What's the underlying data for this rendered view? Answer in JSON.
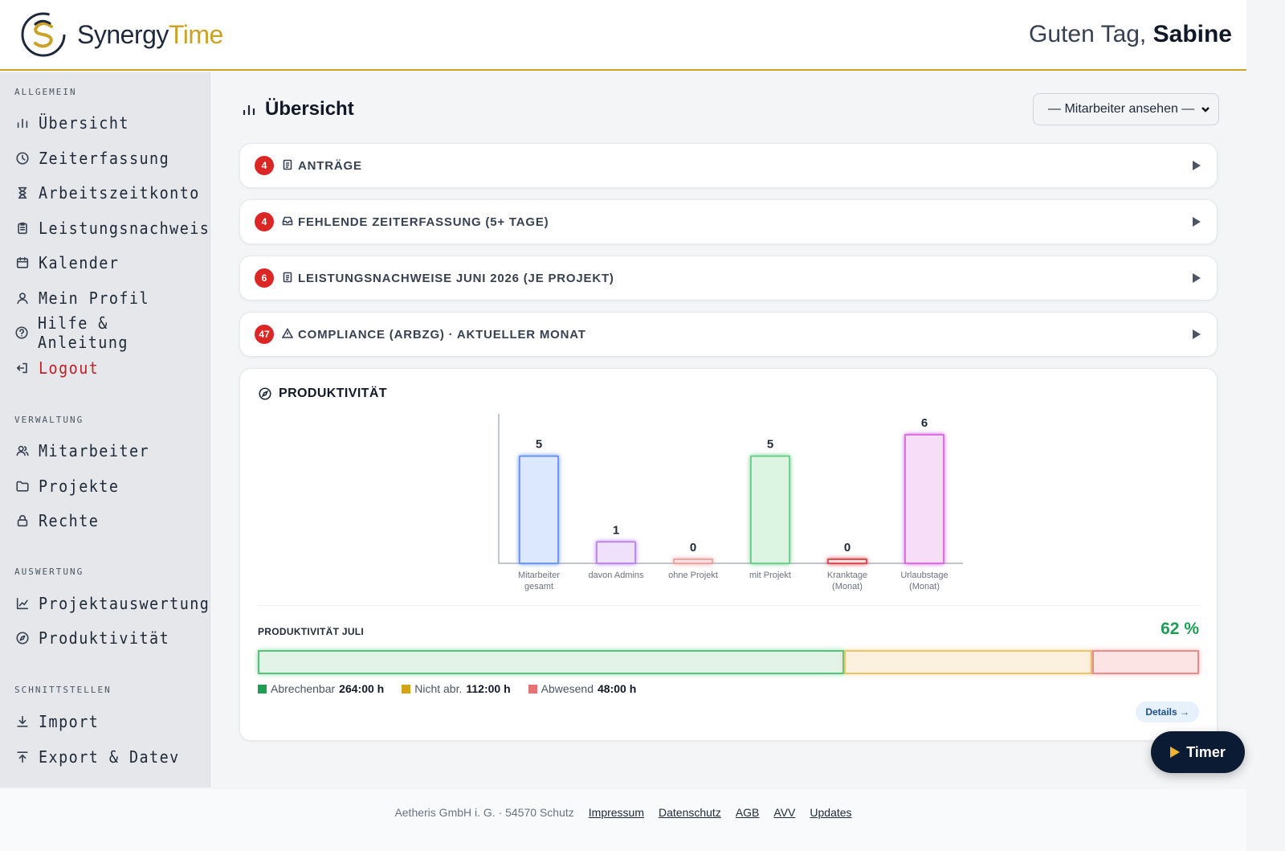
{
  "header": {
    "brand_a": "Synergy",
    "brand_b": "Time",
    "greeting": "Guten Tag,",
    "user_name": "Sabine"
  },
  "sidebar": {
    "sections": [
      {
        "label": "ALLGEMEIN",
        "items": [
          {
            "label": "Übersicht",
            "icon": "bar-chart-icon"
          },
          {
            "label": "Zeiterfassung",
            "icon": "clock-icon"
          },
          {
            "label": "Arbeitszeitkonto",
            "icon": "hourglass-icon"
          },
          {
            "label": "Leistungsnachweis",
            "icon": "clipboard-icon"
          },
          {
            "label": "Kalender",
            "icon": "calendar-icon"
          },
          {
            "label": "Mein Profil",
            "icon": "user-icon"
          },
          {
            "label": "Hilfe & Anleitung",
            "icon": "help-circle-icon"
          },
          {
            "label": "Logout",
            "icon": "logout-icon"
          }
        ]
      },
      {
        "label": "VERWALTUNG",
        "items": [
          {
            "label": "Mitarbeiter",
            "icon": "users-icon"
          },
          {
            "label": "Projekte",
            "icon": "folder-icon"
          },
          {
            "label": "Rechte",
            "icon": "lock-icon"
          }
        ]
      },
      {
        "label": "AUSWERTUNG",
        "items": [
          {
            "label": "Projektauswertung",
            "icon": "line-chart-icon"
          },
          {
            "label": "Produktivität",
            "icon": "compass-icon"
          }
        ]
      },
      {
        "label": "SCHNITTSTELLEN",
        "items": [
          {
            "label": "Import",
            "icon": "download-icon"
          },
          {
            "label": "Export & Datev",
            "icon": "upload-icon"
          }
        ]
      }
    ]
  },
  "main": {
    "title": "Übersicht",
    "employee_select": "— Mitarbeiter ansehen —",
    "accordions": [
      {
        "count": "4",
        "label": "ANTRÄGE",
        "icon": "document-icon"
      },
      {
        "count": "4",
        "label": "FEHLENDE ZEITERFASSUNG (5+ TAGE)",
        "icon": "inbox-icon"
      },
      {
        "count": "6",
        "label": "LEISTUNGSNACHWEISE JUNI 2026 (JE PROJEKT)",
        "icon": "document-icon"
      },
      {
        "count": "47",
        "label": "COMPLIANCE (ARBZG) · AKTUELLER MONAT",
        "icon": "warning-icon"
      }
    ],
    "productivity": {
      "title": "PRODUKTIVITÄT",
      "month_label": "PRODUKTIVITÄT JULI",
      "percent": "62 %",
      "legend": [
        {
          "label": "Abrechenbar",
          "value": "264:00 h",
          "color": "#1f9d55"
        },
        {
          "label": "Nicht abr.",
          "value": "112:00 h",
          "color": "#d4a418"
        },
        {
          "label": "Abwesend",
          "value": "48:00 h",
          "color": "#e57373"
        }
      ],
      "details": "Details →"
    }
  },
  "chart_data": {
    "type": "bar",
    "categories": [
      [
        "Mitarbeiter",
        "gesamt"
      ],
      [
        "davon Admins"
      ],
      [
        "ohne Projekt"
      ],
      [
        "mit Projekt"
      ],
      [
        "Kranktage",
        "(Monat)"
      ],
      [
        "Urlaubstage",
        "(Monat)"
      ]
    ],
    "values": [
      5,
      1,
      0,
      5,
      0,
      6
    ],
    "colors": [
      {
        "fill": "#dbe8fd",
        "stroke": "#5b8def"
      },
      {
        "fill": "#efe0fc",
        "stroke": "#b57ae8"
      },
      {
        "fill": "#fde3e3",
        "stroke": "#eb9a9a"
      },
      {
        "fill": "#dcf5e3",
        "stroke": "#5ccc7f"
      },
      {
        "fill": "#fde3e3",
        "stroke": "#d9363e"
      },
      {
        "fill": "#f8ddf8",
        "stroke": "#d65ce0"
      }
    ],
    "ylim": [
      0,
      6
    ],
    "grid": false
  },
  "productivity_split": [
    264,
    112,
    48
  ],
  "footer": {
    "company": "Aetheris GmbH i. G. · 54570 Schutz",
    "links": [
      "Impressum",
      "Datenschutz",
      "AGB",
      "AVV",
      "Updates"
    ]
  },
  "timer": {
    "label": "Timer"
  }
}
